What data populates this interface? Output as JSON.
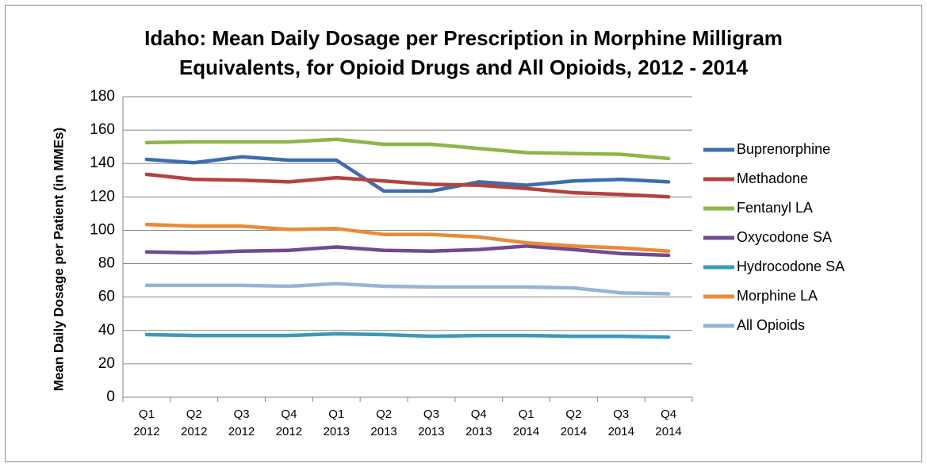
{
  "chart_data": {
    "type": "line",
    "title": "Idaho:  Mean Daily Dosage per Prescription in Morphine Milligram Equivalents, for Opioid Drugs and All Opioids, 2012 - 2014",
    "title_lines": [
      "Idaho:  Mean Daily Dosage per Prescription in Morphine Milligram",
      "Equivalents, for Opioid Drugs and All Opioids, 2012 - 2014"
    ],
    "xlabel": "",
    "ylabel": "Mean Daily Dosage per Patient (in MMEs)",
    "ylim": [
      0,
      180
    ],
    "yticks": [
      0,
      20,
      40,
      60,
      80,
      100,
      120,
      140,
      160,
      180
    ],
    "grid": true,
    "legend_position": "right",
    "categories": [
      [
        "Q1",
        "2012"
      ],
      [
        "Q2",
        "2012"
      ],
      [
        "Q3",
        "2012"
      ],
      [
        "Q4",
        "2012"
      ],
      [
        "Q1",
        "2013"
      ],
      [
        "Q2",
        "2013"
      ],
      [
        "Q3",
        "2013"
      ],
      [
        "Q4",
        "2013"
      ],
      [
        "Q1",
        "2014"
      ],
      [
        "Q2",
        "2014"
      ],
      [
        "Q3",
        "2014"
      ],
      [
        "Q4",
        "2014"
      ]
    ],
    "series": [
      {
        "name": "Buprenorphine",
        "color": "#3c6eae",
        "values": [
          142.5,
          140.5,
          144,
          142,
          142,
          123.5,
          123.5,
          129,
          127,
          129.5,
          130.5,
          129
        ]
      },
      {
        "name": "Methadone",
        "color": "#b2433f",
        "values": [
          133.5,
          130.5,
          130,
          129,
          131.5,
          129.5,
          127.5,
          127,
          125,
          122.5,
          121.5,
          120
        ]
      },
      {
        "name": "Fentanyl LA",
        "color": "#8eb54a",
        "values": [
          152.5,
          153,
          153,
          153,
          154.5,
          151.5,
          151.5,
          149,
          146.5,
          146,
          145.5,
          143
        ]
      },
      {
        "name": "Oxycodone SA",
        "color": "#6f4a93",
        "values": [
          87,
          86.5,
          87.5,
          88,
          90,
          88,
          87.5,
          88.5,
          90.5,
          88.5,
          86,
          85
        ]
      },
      {
        "name": "Hydrocodone SA",
        "color": "#3a9bb5",
        "values": [
          37.5,
          37,
          37,
          37,
          38,
          37.5,
          36.5,
          37,
          37,
          36.5,
          36.5,
          36
        ]
      },
      {
        "name": "Morphine LA",
        "color": "#e98a3a",
        "values": [
          103.5,
          102.5,
          102.5,
          100.5,
          101,
          97.5,
          97.5,
          96,
          92.5,
          90.5,
          89.5,
          87.5
        ]
      },
      {
        "name": "All Opioids",
        "color": "#97b3d6",
        "values": [
          67,
          67,
          67,
          66.5,
          68,
          66.5,
          66,
          66,
          66,
          65.5,
          62.5,
          62
        ]
      }
    ]
  }
}
